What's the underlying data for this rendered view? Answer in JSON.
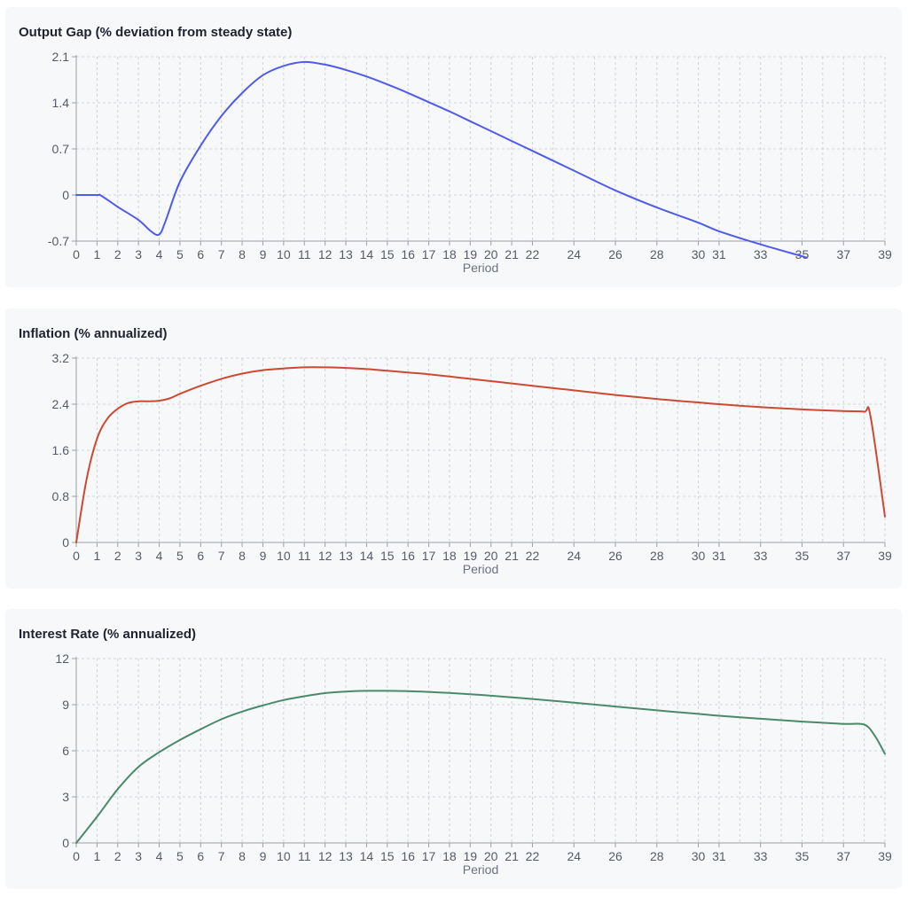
{
  "colors": {
    "card_bg": "#f7f8fa",
    "grid": "#cfd3d9",
    "axis": "#9aa0a6",
    "title": "#1f2330",
    "tick": "#555b66"
  },
  "x_tick_labels": [
    0,
    1,
    2,
    3,
    4,
    5,
    6,
    7,
    8,
    9,
    10,
    11,
    12,
    13,
    14,
    15,
    16,
    17,
    18,
    19,
    20,
    21,
    22,
    24,
    26,
    28,
    30,
    31,
    33,
    35,
    37,
    39
  ],
  "chart_data": [
    {
      "type": "line",
      "title": "Output Gap (% deviation from steady state)",
      "xlabel": "Period",
      "ylabel": "",
      "xlim": [
        0,
        39
      ],
      "ylim": [
        -0.7,
        2.1
      ],
      "yticks": [
        -0.7,
        0,
        0.7,
        1.4,
        2.1
      ],
      "grid": true,
      "color": "#4f5bea",
      "series": [
        {
          "x": [
            0,
            1,
            1.2,
            2,
            3,
            3.6,
            4,
            4.3,
            5,
            6,
            7,
            8,
            9,
            10,
            11,
            12,
            13,
            14,
            15,
            16,
            17,
            18,
            19,
            20,
            21,
            22,
            24,
            26,
            28,
            30,
            31,
            33,
            35,
            35.2
          ],
          "values": [
            0,
            0,
            -0.01,
            -0.18,
            -0.38,
            -0.55,
            -0.6,
            -0.4,
            0.2,
            0.75,
            1.2,
            1.55,
            1.82,
            1.96,
            2.02,
            1.98,
            1.9,
            1.8,
            1.68,
            1.55,
            1.41,
            1.27,
            1.12,
            0.97,
            0.82,
            0.67,
            0.37,
            0.07,
            -0.19,
            -0.42,
            -0.55,
            -0.75,
            -0.93,
            -0.95
          ]
        }
      ]
    },
    {
      "type": "line",
      "title": "Inflation (% annualized)",
      "xlabel": "Period",
      "ylabel": "",
      "xlim": [
        0,
        39
      ],
      "ylim": [
        0,
        3.2
      ],
      "yticks": [
        0,
        0.8,
        1.6,
        2.4,
        3.2
      ],
      "grid": true,
      "color": "#cc4a33",
      "series": [
        {
          "x": [
            0,
            0.5,
            1,
            1.5,
            2,
            2.5,
            3,
            3.5,
            4,
            4.5,
            5,
            6,
            7,
            8,
            9,
            10,
            11,
            12,
            13,
            14,
            15,
            16,
            17,
            18,
            19,
            20,
            21,
            22,
            24,
            26,
            28,
            30,
            31,
            33,
            35,
            37,
            38,
            38.3,
            39
          ],
          "values": [
            0,
            1.1,
            1.8,
            2.15,
            2.32,
            2.42,
            2.45,
            2.45,
            2.46,
            2.5,
            2.58,
            2.72,
            2.84,
            2.93,
            2.99,
            3.02,
            3.04,
            3.04,
            3.03,
            3.01,
            2.98,
            2.95,
            2.92,
            2.88,
            2.84,
            2.8,
            2.76,
            2.72,
            2.64,
            2.56,
            2.49,
            2.43,
            2.4,
            2.35,
            2.31,
            2.28,
            2.27,
            2.2,
            0.45
          ]
        }
      ]
    },
    {
      "type": "line",
      "title": "Interest Rate (% annualized)",
      "xlabel": "Period",
      "ylabel": "",
      "xlim": [
        0,
        39
      ],
      "ylim": [
        0,
        12
      ],
      "yticks": [
        0,
        3,
        6,
        9,
        12
      ],
      "grid": true,
      "color": "#4a8a6a",
      "series": [
        {
          "x": [
            0,
            1,
            2,
            3,
            4,
            5,
            6,
            7,
            8,
            9,
            10,
            11,
            12,
            13,
            14,
            15,
            16,
            17,
            18,
            19,
            20,
            21,
            22,
            24,
            26,
            28,
            30,
            31,
            33,
            35,
            37,
            38,
            38.5,
            39
          ],
          "values": [
            0,
            1.7,
            3.5,
            4.95,
            5.9,
            6.7,
            7.4,
            8.05,
            8.55,
            8.95,
            9.3,
            9.55,
            9.75,
            9.85,
            9.9,
            9.9,
            9.88,
            9.83,
            9.76,
            9.68,
            9.58,
            9.48,
            9.37,
            9.13,
            8.88,
            8.63,
            8.4,
            8.28,
            8.08,
            7.9,
            7.75,
            7.7,
            7.0,
            5.8
          ]
        }
      ]
    }
  ]
}
